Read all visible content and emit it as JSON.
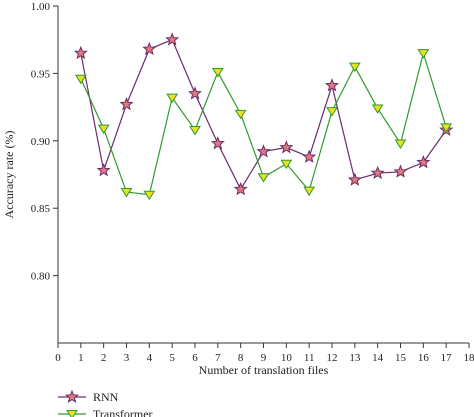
{
  "chart_data": {
    "type": "line",
    "xlabel": "Number of translation files",
    "ylabel": "Accuracy rate (%)",
    "xlim": [
      0,
      18
    ],
    "ylim": [
      0.75,
      1.0
    ],
    "x_ticks": [
      0,
      1,
      2,
      3,
      4,
      5,
      6,
      7,
      8,
      9,
      10,
      11,
      12,
      13,
      14,
      15,
      16,
      17,
      18
    ],
    "y_ticks": [
      0.8,
      0.85,
      0.9,
      0.95,
      1.0
    ],
    "y_tick_labels": [
      "0.80",
      "0.85",
      "0.90",
      "0.95",
      "1.00"
    ],
    "grid": false,
    "legend_position": "bottom-left",
    "x": [
      1,
      2,
      3,
      4,
      5,
      6,
      7,
      8,
      9,
      10,
      11,
      12,
      13,
      14,
      15,
      16,
      17
    ],
    "series": [
      {
        "name": "RNN",
        "color": "#6b2b6b",
        "marker": "star",
        "marker_fill": "#e07a7a",
        "values": [
          0.965,
          0.878,
          0.927,
          0.968,
          0.975,
          0.935,
          0.898,
          0.864,
          0.892,
          0.895,
          0.888,
          0.941,
          0.871,
          0.876,
          0.877,
          0.884,
          0.908
        ]
      },
      {
        "name": "Transformer",
        "color": "#2f9a2f",
        "marker": "triangle-down",
        "marker_fill": "#e8e020",
        "values": [
          0.946,
          0.909,
          0.862,
          0.86,
          0.932,
          0.908,
          0.951,
          0.92,
          0.873,
          0.883,
          0.863,
          0.922,
          0.955,
          0.924,
          0.898,
          0.965,
          0.91
        ]
      }
    ]
  }
}
